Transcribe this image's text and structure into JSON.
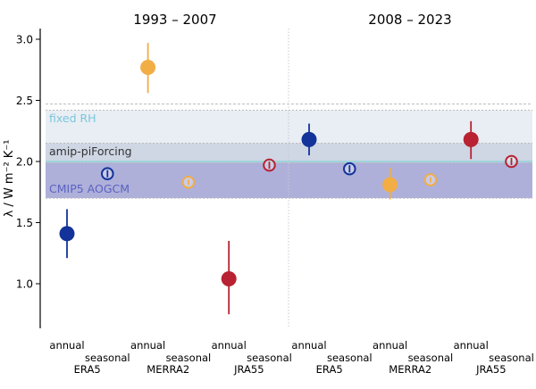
{
  "chart_data": {
    "type": "scatter",
    "ylabel": "λ / W m⁻² K⁻¹",
    "ylim": [
      0.7,
      3.1
    ],
    "yticks": [
      1.0,
      1.5,
      2.0,
      2.5,
      3.0
    ],
    "ytick_labels": [
      "1.0",
      "1.5",
      "2.0",
      "2.5",
      "3.0"
    ],
    "periods": [
      {
        "name": "1993 – 2007"
      },
      {
        "name": "2008 – 2023"
      }
    ],
    "bands": [
      {
        "name": "fixed RH",
        "low": 1.97,
        "high": 2.42,
        "color": "#e8eef3",
        "label_color": "#7cc6dd"
      },
      {
        "name": "amip-piForcing",
        "low": 1.97,
        "high": 2.15,
        "color": "#cfd6e4",
        "label_color": "#333333"
      },
      {
        "name": "CMIP5 AOGCM",
        "low": 1.7,
        "high": 1.99,
        "color": "#aeb0da",
        "label_color": "#5c62c0"
      }
    ],
    "reference_lines": [
      {
        "value": 2.47,
        "color": "#bbbbbb",
        "style": "dashed"
      },
      {
        "value": 2.0,
        "color": "#8fd3da",
        "style": "solid"
      }
    ],
    "x_labels": [
      {
        "period": 0,
        "slot": 0,
        "text": "annual",
        "row": 1
      },
      {
        "period": 0,
        "slot": 1,
        "text": "seasonal",
        "row": 2
      },
      {
        "period": 0,
        "slot": 0.5,
        "text": "ERA5",
        "row": 3
      },
      {
        "period": 0,
        "slot": 2,
        "text": "annual",
        "row": 1
      },
      {
        "period": 0,
        "slot": 3,
        "text": "seasonal",
        "row": 2
      },
      {
        "period": 0,
        "slot": 2.5,
        "text": "MERRA2",
        "row": 3
      },
      {
        "period": 0,
        "slot": 4,
        "text": "annual",
        "row": 1
      },
      {
        "period": 0,
        "slot": 5,
        "text": "seasonal",
        "row": 2
      },
      {
        "period": 0,
        "slot": 4.5,
        "text": "JRA55",
        "row": 3
      },
      {
        "period": 1,
        "slot": 0,
        "text": "annual",
        "row": 1
      },
      {
        "period": 1,
        "slot": 1,
        "text": "seasonal",
        "row": 2
      },
      {
        "period": 1,
        "slot": 0.5,
        "text": "ERA5",
        "row": 3
      },
      {
        "period": 1,
        "slot": 2,
        "text": "annual",
        "row": 1
      },
      {
        "period": 1,
        "slot": 3,
        "text": "seasonal",
        "row": 2
      },
      {
        "period": 1,
        "slot": 2.5,
        "text": "MERRA2",
        "row": 3
      },
      {
        "period": 1,
        "slot": 4,
        "text": "annual",
        "row": 1
      },
      {
        "period": 1,
        "slot": 5,
        "text": "seasonal",
        "row": 2
      },
      {
        "period": 1,
        "slot": 4.5,
        "text": "JRA55",
        "row": 3
      }
    ],
    "series": [
      {
        "name": "ERA5",
        "color": "#13339a",
        "points": [
          {
            "period": 0,
            "kind": "annual",
            "y": 1.41,
            "low": 1.21,
            "high": 1.61
          },
          {
            "period": 0,
            "kind": "seasonal",
            "y": 1.9,
            "low": 1.87,
            "high": 1.93
          },
          {
            "period": 1,
            "kind": "annual",
            "y": 2.18,
            "low": 2.05,
            "high": 2.31
          },
          {
            "period": 1,
            "kind": "seasonal",
            "y": 1.94,
            "low": 1.91,
            "high": 1.97
          }
        ]
      },
      {
        "name": "MERRA2",
        "color": "#f2ad45",
        "points": [
          {
            "period": 0,
            "kind": "annual",
            "y": 2.77,
            "low": 2.56,
            "high": 2.97
          },
          {
            "period": 0,
            "kind": "seasonal",
            "y": 1.83,
            "low": 1.81,
            "high": 1.85
          },
          {
            "period": 1,
            "kind": "annual",
            "y": 1.81,
            "low": 1.69,
            "high": 1.95
          },
          {
            "period": 1,
            "kind": "seasonal",
            "y": 1.85,
            "low": 1.83,
            "high": 1.87
          }
        ]
      },
      {
        "name": "JRA55",
        "color": "#b82232",
        "points": [
          {
            "period": 0,
            "kind": "annual",
            "y": 1.04,
            "low": 0.75,
            "high": 1.35
          },
          {
            "period": 0,
            "kind": "seasonal",
            "y": 1.97,
            "low": 1.94,
            "high": 2.0
          },
          {
            "period": 1,
            "kind": "annual",
            "y": 2.18,
            "low": 2.02,
            "high": 2.33
          },
          {
            "period": 1,
            "kind": "seasonal",
            "y": 2.0,
            "low": 1.97,
            "high": 2.03
          }
        ]
      }
    ]
  }
}
